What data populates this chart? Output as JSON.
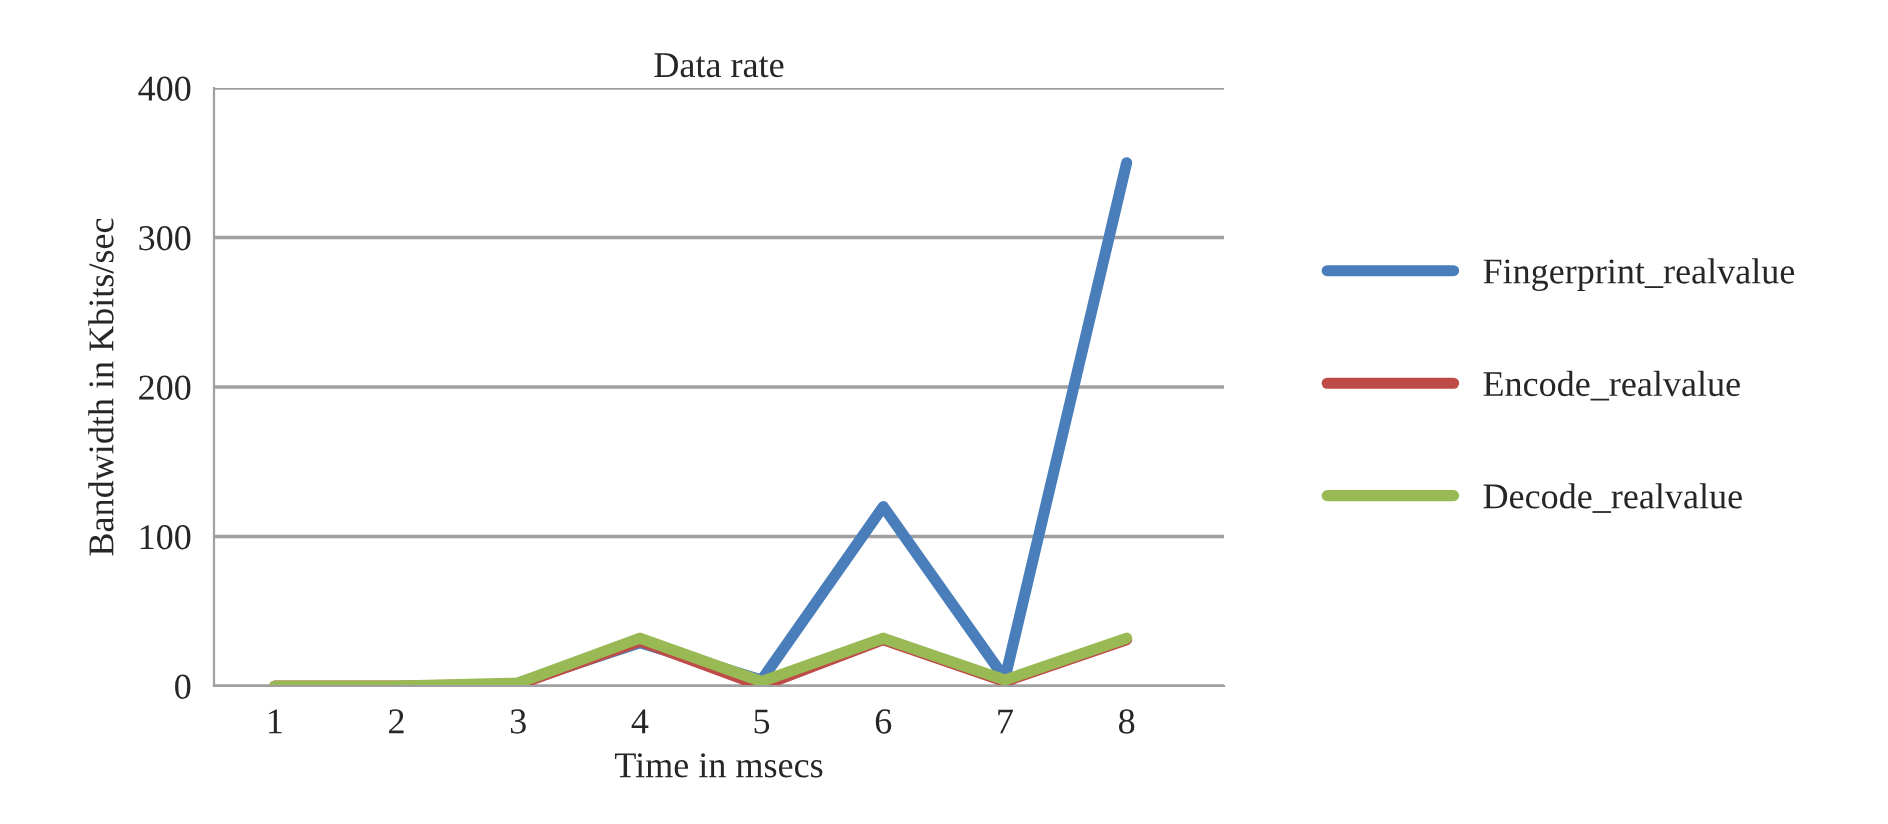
{
  "chart_data": {
    "type": "line",
    "title": "Data rate",
    "xlabel": "Time in msecs",
    "ylabel": "Bandwidth in Kbits/sec",
    "categories": [
      "1",
      "2",
      "3",
      "4",
      "5",
      "6",
      "7",
      "8"
    ],
    "series": [
      {
        "name": "Fingerprint_realvalue",
        "color": "#4a7ebb",
        "values": [
          null,
          null,
          2,
          29,
          4,
          120,
          5,
          350
        ]
      },
      {
        "name": "Encode_realvalue",
        "color": "#be4b48",
        "values": [
          0,
          0,
          1,
          30,
          0,
          31,
          3,
          31
        ]
      },
      {
        "name": "Decode_realvalue",
        "color": "#98b954",
        "values": [
          0,
          0,
          2,
          32,
          3,
          32,
          4,
          32
        ]
      }
    ],
    "ylim": [
      0,
      400
    ],
    "yticks": [
      0,
      100,
      200,
      300,
      400
    ],
    "grid": "y",
    "legend": "right",
    "marker": "none",
    "line_style": "solid"
  }
}
